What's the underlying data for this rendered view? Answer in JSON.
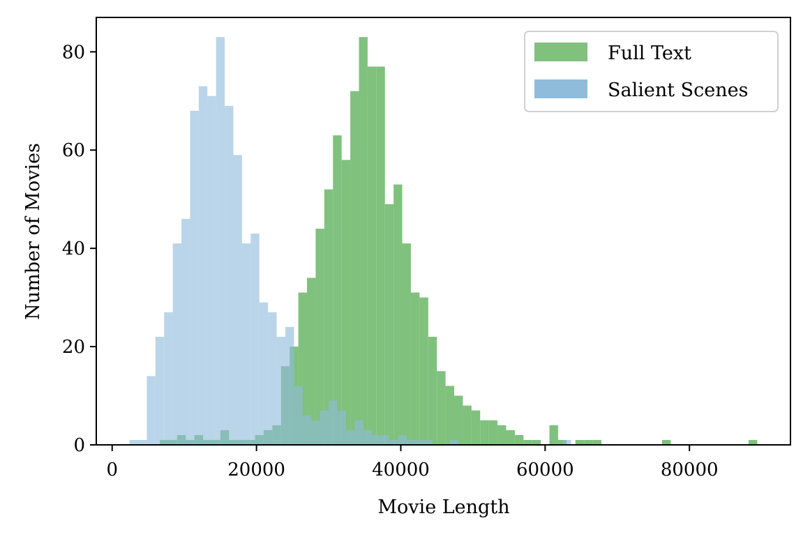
{
  "chart_data": {
    "type": "histogram",
    "xlabel": "Movie Length",
    "ylabel": "Number of Movies",
    "xlim": [
      -2200,
      94000
    ],
    "ylim": [
      0,
      87
    ],
    "xticks": [
      0,
      20000,
      40000,
      60000,
      80000
    ],
    "yticks": [
      0,
      20,
      40,
      60,
      80
    ],
    "legend_position": "top-right",
    "series": [
      {
        "name": "Salient Scenes",
        "color": "#90bcdb",
        "bins_start": [
          2400,
          3600,
          4800,
          6000,
          7200,
          8400,
          9600,
          10800,
          12000,
          13200,
          14400,
          15600,
          16800,
          18000,
          19200,
          20400,
          21600,
          22800,
          24000,
          25200,
          26400,
          27600,
          28800,
          30000,
          31200,
          32400,
          33600,
          34800,
          36000,
          37200,
          38400,
          39600,
          40800,
          42000,
          43200,
          44400,
          45600,
          46800,
          48000,
          49200,
          50400,
          51600,
          52800,
          54000,
          55200,
          56400,
          57600,
          58800,
          60000,
          61200,
          62400
        ],
        "bins_end": [
          3600,
          4800,
          6000,
          7200,
          8400,
          9600,
          10800,
          12000,
          13200,
          14400,
          15600,
          16800,
          18000,
          19200,
          20400,
          21600,
          22800,
          24000,
          25200,
          26400,
          27600,
          28800,
          30000,
          31200,
          32400,
          33600,
          34800,
          36000,
          37200,
          38400,
          39600,
          40800,
          42000,
          43200,
          44400,
          45600,
          46800,
          48000,
          49200,
          50400,
          51600,
          52800,
          54000,
          55200,
          56400,
          57600,
          58800,
          60000,
          61200,
          62400,
          63600
        ],
        "counts": [
          1,
          1,
          14,
          22,
          27,
          41,
          46,
          68,
          73,
          71,
          83,
          69,
          59,
          41,
          43,
          29,
          27,
          22,
          24,
          12,
          6,
          5,
          7,
          9,
          7,
          3,
          5,
          3,
          2,
          2,
          1,
          2,
          1,
          1,
          1,
          0,
          0,
          1,
          0,
          0,
          0,
          0,
          0,
          0,
          0,
          0,
          0,
          0,
          0,
          0,
          1
        ]
      },
      {
        "name": "Full Text",
        "color": "#7fc17d",
        "bins_start": [
          6600,
          7800,
          9000,
          10200,
          11400,
          12600,
          13800,
          15000,
          16200,
          17400,
          18600,
          19800,
          21000,
          22200,
          23400,
          24600,
          25800,
          27000,
          28200,
          29400,
          30600,
          31800,
          33000,
          34200,
          35400,
          36600,
          37800,
          39000,
          40200,
          41400,
          42600,
          43800,
          45000,
          46200,
          47400,
          48600,
          49800,
          51000,
          52200,
          53400,
          54600,
          55800,
          57000,
          58200,
          59400,
          60600,
          61800,
          63000,
          64200,
          65400,
          66600,
          76200,
          88200
        ],
        "bins_end": [
          7800,
          9000,
          10200,
          11400,
          12600,
          13800,
          15000,
          16200,
          17400,
          18600,
          19800,
          21000,
          22200,
          23400,
          24600,
          25800,
          27000,
          28200,
          29400,
          30600,
          31800,
          33000,
          34200,
          35400,
          36600,
          37800,
          39000,
          40200,
          41400,
          42600,
          43800,
          45000,
          46200,
          47400,
          48600,
          49800,
          51000,
          52200,
          53400,
          54600,
          55800,
          57000,
          58200,
          59400,
          60600,
          61800,
          63000,
          64200,
          65400,
          66600,
          67800,
          77400,
          89400
        ],
        "counts": [
          1,
          1,
          2,
          1,
          2,
          1,
          1,
          3,
          1,
          1,
          1,
          2,
          3,
          4,
          16,
          20,
          31,
          34,
          44,
          52,
          63,
          58,
          72,
          83,
          77,
          77,
          49,
          53,
          41,
          31,
          30,
          22,
          15,
          12,
          10,
          8,
          7,
          5,
          5,
          4,
          3,
          2,
          1,
          1,
          0,
          4,
          1,
          0,
          1,
          1,
          1,
          1,
          1
        ]
      }
    ]
  }
}
